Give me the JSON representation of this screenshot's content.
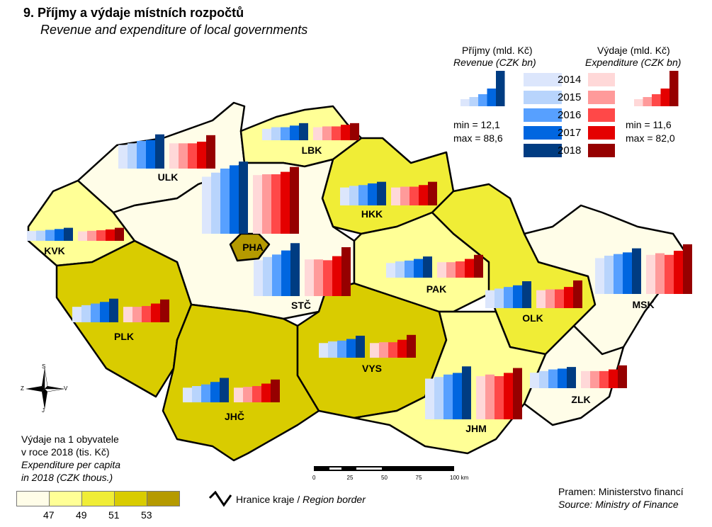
{
  "title": "9. Příjmy a výdaje místních rozpočtů",
  "subtitle": "Revenue and expenditure of local governments",
  "legend": {
    "revenue_cz": "Příjmy (mld. Kč)",
    "revenue_en": "Revenue (CZK bn)",
    "expenditure_cz": "Výdaje (mld. Kč)",
    "expenditure_en": "Expenditure (CZK bn)",
    "years": [
      "2014",
      "2015",
      "2016",
      "2017",
      "2018"
    ],
    "revenue_colors": [
      "#dce6fc",
      "#b8d4fc",
      "#57a0ff",
      "#0066e0",
      "#003c82"
    ],
    "expenditure_colors": [
      "#ffd8d8",
      "#ff9a9a",
      "#ff4848",
      "#e40000",
      "#960000"
    ],
    "revenue_min": "min = 12,1",
    "revenue_max": "max = 88,6",
    "expenditure_min": "min = 11,6",
    "expenditure_max": "max = 82,0"
  },
  "choropleth": {
    "title_cz1": "Výdaje na 1 obyvatele",
    "title_cz2": "v roce 2018 (tis. Kč)",
    "title_en1": "Expenditure per capita",
    "title_en2": "in 2018 (CZK thous.)",
    "class_colors": [
      "#fffde8",
      "#ffff96",
      "#f0ed36",
      "#d9cc00",
      "#b59a00"
    ],
    "breaks": [
      "47",
      "49",
      "51",
      "53"
    ]
  },
  "border_legend": {
    "cz": "Hranice kraje / ",
    "en": "Region border"
  },
  "scale": {
    "ticks": [
      "0",
      "25",
      "50",
      "75",
      "100 km"
    ]
  },
  "source": {
    "cz": "Pramen: Ministerstvo financí",
    "en": "Source: Ministry of Finance"
  },
  "compass": {
    "s": "S",
    "j": "J",
    "z": "Z",
    "v": "V"
  },
  "chart_data": {
    "type": "map-bar",
    "series_names": [
      "Revenue",
      "Expenditure"
    ],
    "years": [
      "2014",
      "2015",
      "2016",
      "2017",
      "2018"
    ],
    "regions": [
      {
        "code": "PHA",
        "class": 4,
        "revenue": [
          70,
          75,
          80,
          84,
          88.6
        ],
        "expenditure": [
          72,
          73,
          73,
          76,
          82.0
        ]
      },
      {
        "code": "STČ",
        "class": 0,
        "revenue": [
          44,
          48,
          51,
          56,
          65
        ],
        "expenditure": [
          45,
          45,
          44,
          49,
          60
        ]
      },
      {
        "code": "JHČ",
        "class": 3,
        "revenue": [
          18,
          20,
          22,
          25,
          30
        ],
        "expenditure": [
          18,
          19,
          20,
          23,
          28
        ]
      },
      {
        "code": "PLK",
        "class": 3,
        "revenue": [
          19,
          21,
          23,
          25,
          29
        ],
        "expenditure": [
          19,
          19,
          20,
          23,
          28
        ]
      },
      {
        "code": "KVK",
        "class": 1,
        "revenue": [
          12.1,
          12.5,
          13.5,
          14.5,
          16
        ],
        "expenditure": [
          11.6,
          12.3,
          13,
          14,
          16
        ]
      },
      {
        "code": "ULK",
        "class": 0,
        "revenue": [
          29,
          31,
          34,
          35,
          42
        ],
        "expenditure": [
          31,
          31,
          31,
          33,
          41
        ]
      },
      {
        "code": "LBK",
        "class": 1,
        "revenue": [
          14,
          16,
          16,
          18,
          21
        ],
        "expenditure": [
          16,
          17,
          17,
          19,
          21
        ]
      },
      {
        "code": "HKK",
        "class": 2,
        "revenue": [
          22,
          24,
          25,
          27,
          29
        ],
        "expenditure": [
          22,
          23,
          23,
          25,
          29
        ]
      },
      {
        "code": "PAK",
        "class": 1,
        "revenue": [
          18,
          20,
          21,
          23,
          26
        ],
        "expenditure": [
          19,
          19,
          20,
          23,
          28
        ]
      },
      {
        "code": "VYS",
        "class": 3,
        "revenue": [
          18,
          20,
          21,
          23,
          27
        ],
        "expenditure": [
          18,
          19,
          19,
          22,
          28
        ]
      },
      {
        "code": "JHM",
        "class": 1,
        "revenue": [
          50,
          52,
          55,
          57,
          65
        ],
        "expenditure": [
          53,
          55,
          53,
          57,
          63
        ]
      },
      {
        "code": "OLK",
        "class": 2,
        "revenue": [
          22,
          24,
          26,
          28,
          33
        ],
        "expenditure": [
          22,
          23,
          23,
          26,
          34
        ]
      },
      {
        "code": "ZLK",
        "class": 0,
        "revenue": [
          19,
          21,
          23,
          24,
          26
        ],
        "expenditure": [
          21,
          21,
          21,
          23,
          28
        ]
      },
      {
        "code": "MSK",
        "class": 0,
        "revenue": [
          44,
          47,
          49,
          51,
          56
        ],
        "expenditure": [
          48,
          50,
          48,
          53,
          61
        ]
      }
    ]
  }
}
